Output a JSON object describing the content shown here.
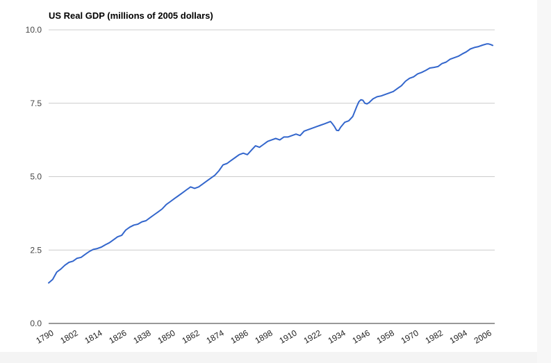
{
  "chart_data": {
    "type": "line",
    "title": "US Real GDP (millions of 2005 dollars)",
    "xlabel": "",
    "ylabel": "",
    "xlim": [
      1790,
      2010
    ],
    "ylim": [
      0,
      10
    ],
    "y_ticks": [
      "0.0",
      "2.5",
      "5.0",
      "7.5",
      "10.0"
    ],
    "x_ticks": [
      "1790",
      "1802",
      "1814",
      "1826",
      "1838",
      "1850",
      "1862",
      "1874",
      "1886",
      "1898",
      "1910",
      "1922",
      "1934",
      "1946",
      "1958",
      "1970",
      "1982",
      "1994",
      "2006"
    ],
    "grid": true,
    "legend": "none",
    "line_color": "#3366cc",
    "series": [
      {
        "x": [
          1790,
          1792,
          1794,
          1796,
          1798,
          1800,
          1802,
          1804,
          1806,
          1808,
          1810,
          1812,
          1814,
          1816,
          1818,
          1820,
          1822,
          1824,
          1826,
          1828,
          1830,
          1832,
          1834,
          1836,
          1838,
          1840,
          1842,
          1844,
          1846,
          1848,
          1850,
          1852,
          1854,
          1856,
          1858,
          1860,
          1862,
          1864,
          1866,
          1868,
          1870,
          1872,
          1874,
          1876,
          1878,
          1880,
          1882,
          1884,
          1886,
          1888,
          1890,
          1892,
          1894,
          1896,
          1898,
          1900,
          1902,
          1904,
          1906,
          1908,
          1910,
          1912,
          1914,
          1916,
          1918,
          1920,
          1922,
          1924,
          1926,
          1928,
          1929,
          1930,
          1931,
          1932,
          1933,
          1934,
          1936,
          1938,
          1940,
          1942,
          1943,
          1944,
          1945,
          1946,
          1947,
          1948,
          1950,
          1952,
          1954,
          1956,
          1958,
          1960,
          1962,
          1964,
          1966,
          1968,
          1970,
          1972,
          1974,
          1976,
          1978,
          1980,
          1982,
          1984,
          1986,
          1988,
          1990,
          1992,
          1994,
          1996,
          1998,
          2000,
          2002,
          2004,
          2006,
          2007,
          2008,
          2009
        ],
        "values": [
          1.38,
          1.5,
          1.75,
          1.85,
          1.98,
          2.08,
          2.12,
          2.22,
          2.25,
          2.35,
          2.45,
          2.52,
          2.55,
          2.6,
          2.68,
          2.75,
          2.85,
          2.95,
          3.0,
          3.18,
          3.28,
          3.35,
          3.38,
          3.46,
          3.5,
          3.6,
          3.7,
          3.8,
          3.9,
          4.05,
          4.15,
          4.25,
          4.35,
          4.45,
          4.55,
          4.65,
          4.6,
          4.65,
          4.75,
          4.85,
          4.95,
          5.05,
          5.2,
          5.4,
          5.45,
          5.55,
          5.65,
          5.75,
          5.8,
          5.75,
          5.9,
          6.05,
          6.0,
          6.1,
          6.2,
          6.25,
          6.3,
          6.25,
          6.35,
          6.35,
          6.4,
          6.45,
          6.4,
          6.55,
          6.6,
          6.65,
          6.7,
          6.75,
          6.8,
          6.85,
          6.88,
          6.8,
          6.7,
          6.58,
          6.57,
          6.68,
          6.85,
          6.9,
          7.05,
          7.4,
          7.55,
          7.62,
          7.6,
          7.5,
          7.48,
          7.52,
          7.65,
          7.72,
          7.75,
          7.8,
          7.85,
          7.9,
          8.0,
          8.1,
          8.25,
          8.35,
          8.4,
          8.5,
          8.55,
          8.62,
          8.7,
          8.72,
          8.75,
          8.85,
          8.9,
          9.0,
          9.05,
          9.1,
          9.18,
          9.25,
          9.35,
          9.4,
          9.43,
          9.48,
          9.52,
          9.52,
          9.5,
          9.47
        ]
      }
    ]
  }
}
